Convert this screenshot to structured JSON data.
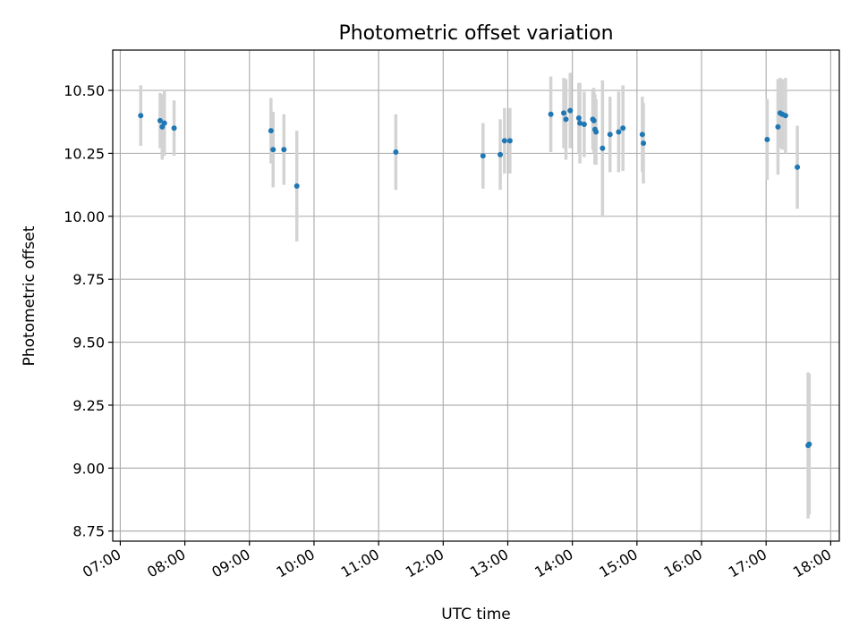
{
  "chart_data": {
    "type": "scatter",
    "title": "Photometric offset variation",
    "xlabel": "UTC time",
    "ylabel": "Photometric offset",
    "x_unit": "hours UTC",
    "xlim": [
      "06:53",
      "18:08"
    ],
    "ylim": [
      8.71,
      10.66
    ],
    "x_ticks": [
      "07:00",
      "08:00",
      "09:00",
      "10:00",
      "11:00",
      "12:00",
      "13:00",
      "14:00",
      "15:00",
      "16:00",
      "17:00",
      "18:00"
    ],
    "y_ticks": [
      "8.75",
      "9.00",
      "9.25",
      "9.50",
      "9.75",
      "10.00",
      "10.25",
      "10.50"
    ],
    "grid": true,
    "point_color": "#1f77b4",
    "errorbar_color": "#d3d3d3",
    "points": [
      {
        "t": "07:19",
        "y": 10.4,
        "err": 0.12
      },
      {
        "t": "07:37",
        "y": 10.38,
        "err": 0.11
      },
      {
        "t": "07:39",
        "y": 10.355,
        "err": 0.13
      },
      {
        "t": "07:41",
        "y": 10.37,
        "err": 0.13
      },
      {
        "t": "07:50",
        "y": 10.35,
        "err": 0.11
      },
      {
        "t": "09:20",
        "y": 10.34,
        "err": 0.13
      },
      {
        "t": "09:22",
        "y": 10.265,
        "err": 0.15
      },
      {
        "t": "09:32",
        "y": 10.265,
        "err": 0.14
      },
      {
        "t": "09:44",
        "y": 10.12,
        "err": 0.22
      },
      {
        "t": "11:16",
        "y": 10.255,
        "err": 0.15
      },
      {
        "t": "12:37",
        "y": 10.24,
        "err": 0.13
      },
      {
        "t": "12:53",
        "y": 10.245,
        "err": 0.14
      },
      {
        "t": "12:57",
        "y": 10.3,
        "err": 0.13
      },
      {
        "t": "13:02",
        "y": 10.3,
        "err": 0.13
      },
      {
        "t": "13:40",
        "y": 10.405,
        "err": 0.15
      },
      {
        "t": "13:52",
        "y": 10.41,
        "err": 0.14
      },
      {
        "t": "13:54",
        "y": 10.385,
        "err": 0.16
      },
      {
        "t": "13:58",
        "y": 10.42,
        "err": 0.15
      },
      {
        "t": "14:06",
        "y": 10.39,
        "err": 0.14
      },
      {
        "t": "14:07",
        "y": 10.37,
        "err": 0.16
      },
      {
        "t": "14:11",
        "y": 10.365,
        "err": 0.13
      },
      {
        "t": "14:19",
        "y": 10.385,
        "err": 0.12
      },
      {
        "t": "14:20",
        "y": 10.38,
        "err": 0.13
      },
      {
        "t": "14:21",
        "y": 10.345,
        "err": 0.14
      },
      {
        "t": "14:22",
        "y": 10.335,
        "err": 0.13
      },
      {
        "t": "14:28",
        "y": 10.27,
        "err": 0.27
      },
      {
        "t": "14:35",
        "y": 10.325,
        "err": 0.15
      },
      {
        "t": "14:43",
        "y": 10.335,
        "err": 0.16
      },
      {
        "t": "14:47",
        "y": 10.35,
        "err": 0.17
      },
      {
        "t": "15:05",
        "y": 10.325,
        "err": 0.15
      },
      {
        "t": "15:06",
        "y": 10.29,
        "err": 0.16
      },
      {
        "t": "17:01",
        "y": 10.305,
        "err": 0.16
      },
      {
        "t": "17:11",
        "y": 10.355,
        "err": 0.19
      },
      {
        "t": "17:13",
        "y": 10.41,
        "err": 0.14
      },
      {
        "t": "17:15",
        "y": 10.405,
        "err": 0.14
      },
      {
        "t": "17:18",
        "y": 10.4,
        "err": 0.15
      },
      {
        "t": "17:29",
        "y": 10.195,
        "err": 0.165
      },
      {
        "t": "17:39",
        "y": 9.09,
        "err": 0.29
      },
      {
        "t": "17:40",
        "y": 9.095,
        "err": 0.28
      }
    ]
  }
}
